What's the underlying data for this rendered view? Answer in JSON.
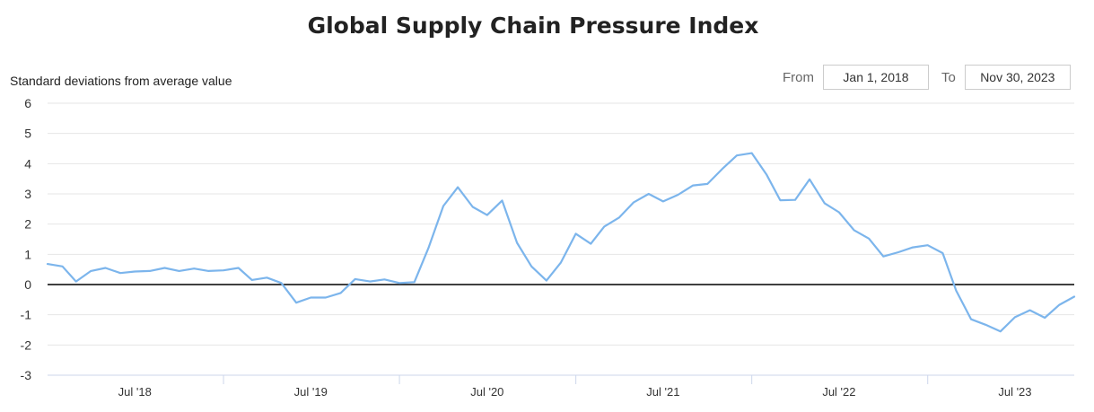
{
  "title": "Global Supply Chain Pressure Index",
  "range": {
    "from_label": "From",
    "from_value": "Jan 1, 2018",
    "to_label": "To",
    "to_value": "Nov 30, 2023"
  },
  "chart_data": {
    "type": "line",
    "title": "Global Supply Chain Pressure Index",
    "ylabel": "Standard deviations from average value",
    "xlabel": "",
    "ylim": [
      -3,
      6
    ],
    "yticks": [
      6,
      5,
      4,
      3,
      2,
      1,
      0,
      -1,
      -2,
      -3
    ],
    "xtick_labels": [
      "Jul '18",
      "Jul '19",
      "Jul '20",
      "Jul '21",
      "Jul '22",
      "Jul '23"
    ],
    "grid": true,
    "line_color": "#7cb5ec",
    "zero_line_color": "#000000",
    "series": [
      {
        "x": [
          "2018-01",
          "2018-02",
          "2018-03",
          "2018-04",
          "2018-05",
          "2018-06",
          "2018-07",
          "2018-08",
          "2018-09",
          "2018-10",
          "2018-11",
          "2018-12",
          "2019-01",
          "2019-02",
          "2019-03",
          "2019-04",
          "2019-05",
          "2019-06",
          "2019-07",
          "2019-08",
          "2019-09",
          "2019-10",
          "2019-11",
          "2019-12",
          "2020-01",
          "2020-02",
          "2020-03",
          "2020-04",
          "2020-05",
          "2020-06",
          "2020-07",
          "2020-08",
          "2020-09",
          "2020-10",
          "2020-11",
          "2020-12",
          "2021-01",
          "2021-02",
          "2021-03",
          "2021-04",
          "2021-05",
          "2021-06",
          "2021-07",
          "2021-08",
          "2021-09",
          "2021-10",
          "2021-11",
          "2021-12",
          "2022-01",
          "2022-02",
          "2022-03",
          "2022-04",
          "2022-05",
          "2022-06",
          "2022-07",
          "2022-08",
          "2022-09",
          "2022-10",
          "2022-11",
          "2022-12",
          "2023-01",
          "2023-02",
          "2023-03",
          "2023-04",
          "2023-05",
          "2023-06",
          "2023-07",
          "2023-08",
          "2023-09",
          "2023-10",
          "2023-11"
        ],
        "values": [
          0.68,
          0.6,
          0.1,
          0.45,
          0.55,
          0.38,
          0.43,
          0.45,
          0.55,
          0.45,
          0.53,
          0.45,
          0.47,
          0.55,
          0.15,
          0.23,
          0.05,
          -0.6,
          -0.43,
          -0.43,
          -0.28,
          0.18,
          0.1,
          0.17,
          0.05,
          0.08,
          1.2,
          2.6,
          3.22,
          2.57,
          2.3,
          2.78,
          1.38,
          0.6,
          0.13,
          0.73,
          1.68,
          1.35,
          1.92,
          2.22,
          2.72,
          3.0,
          2.75,
          2.97,
          3.28,
          3.33,
          3.83,
          4.27,
          4.35,
          3.63,
          2.79,
          2.8,
          3.48,
          2.69,
          2.39,
          1.8,
          1.52,
          0.93,
          1.07,
          1.23,
          1.3,
          1.04,
          -0.2,
          -1.15,
          -1.33,
          -1.55,
          -1.08,
          -0.85,
          -1.1,
          -0.67,
          -0.4
        ]
      }
    ]
  }
}
